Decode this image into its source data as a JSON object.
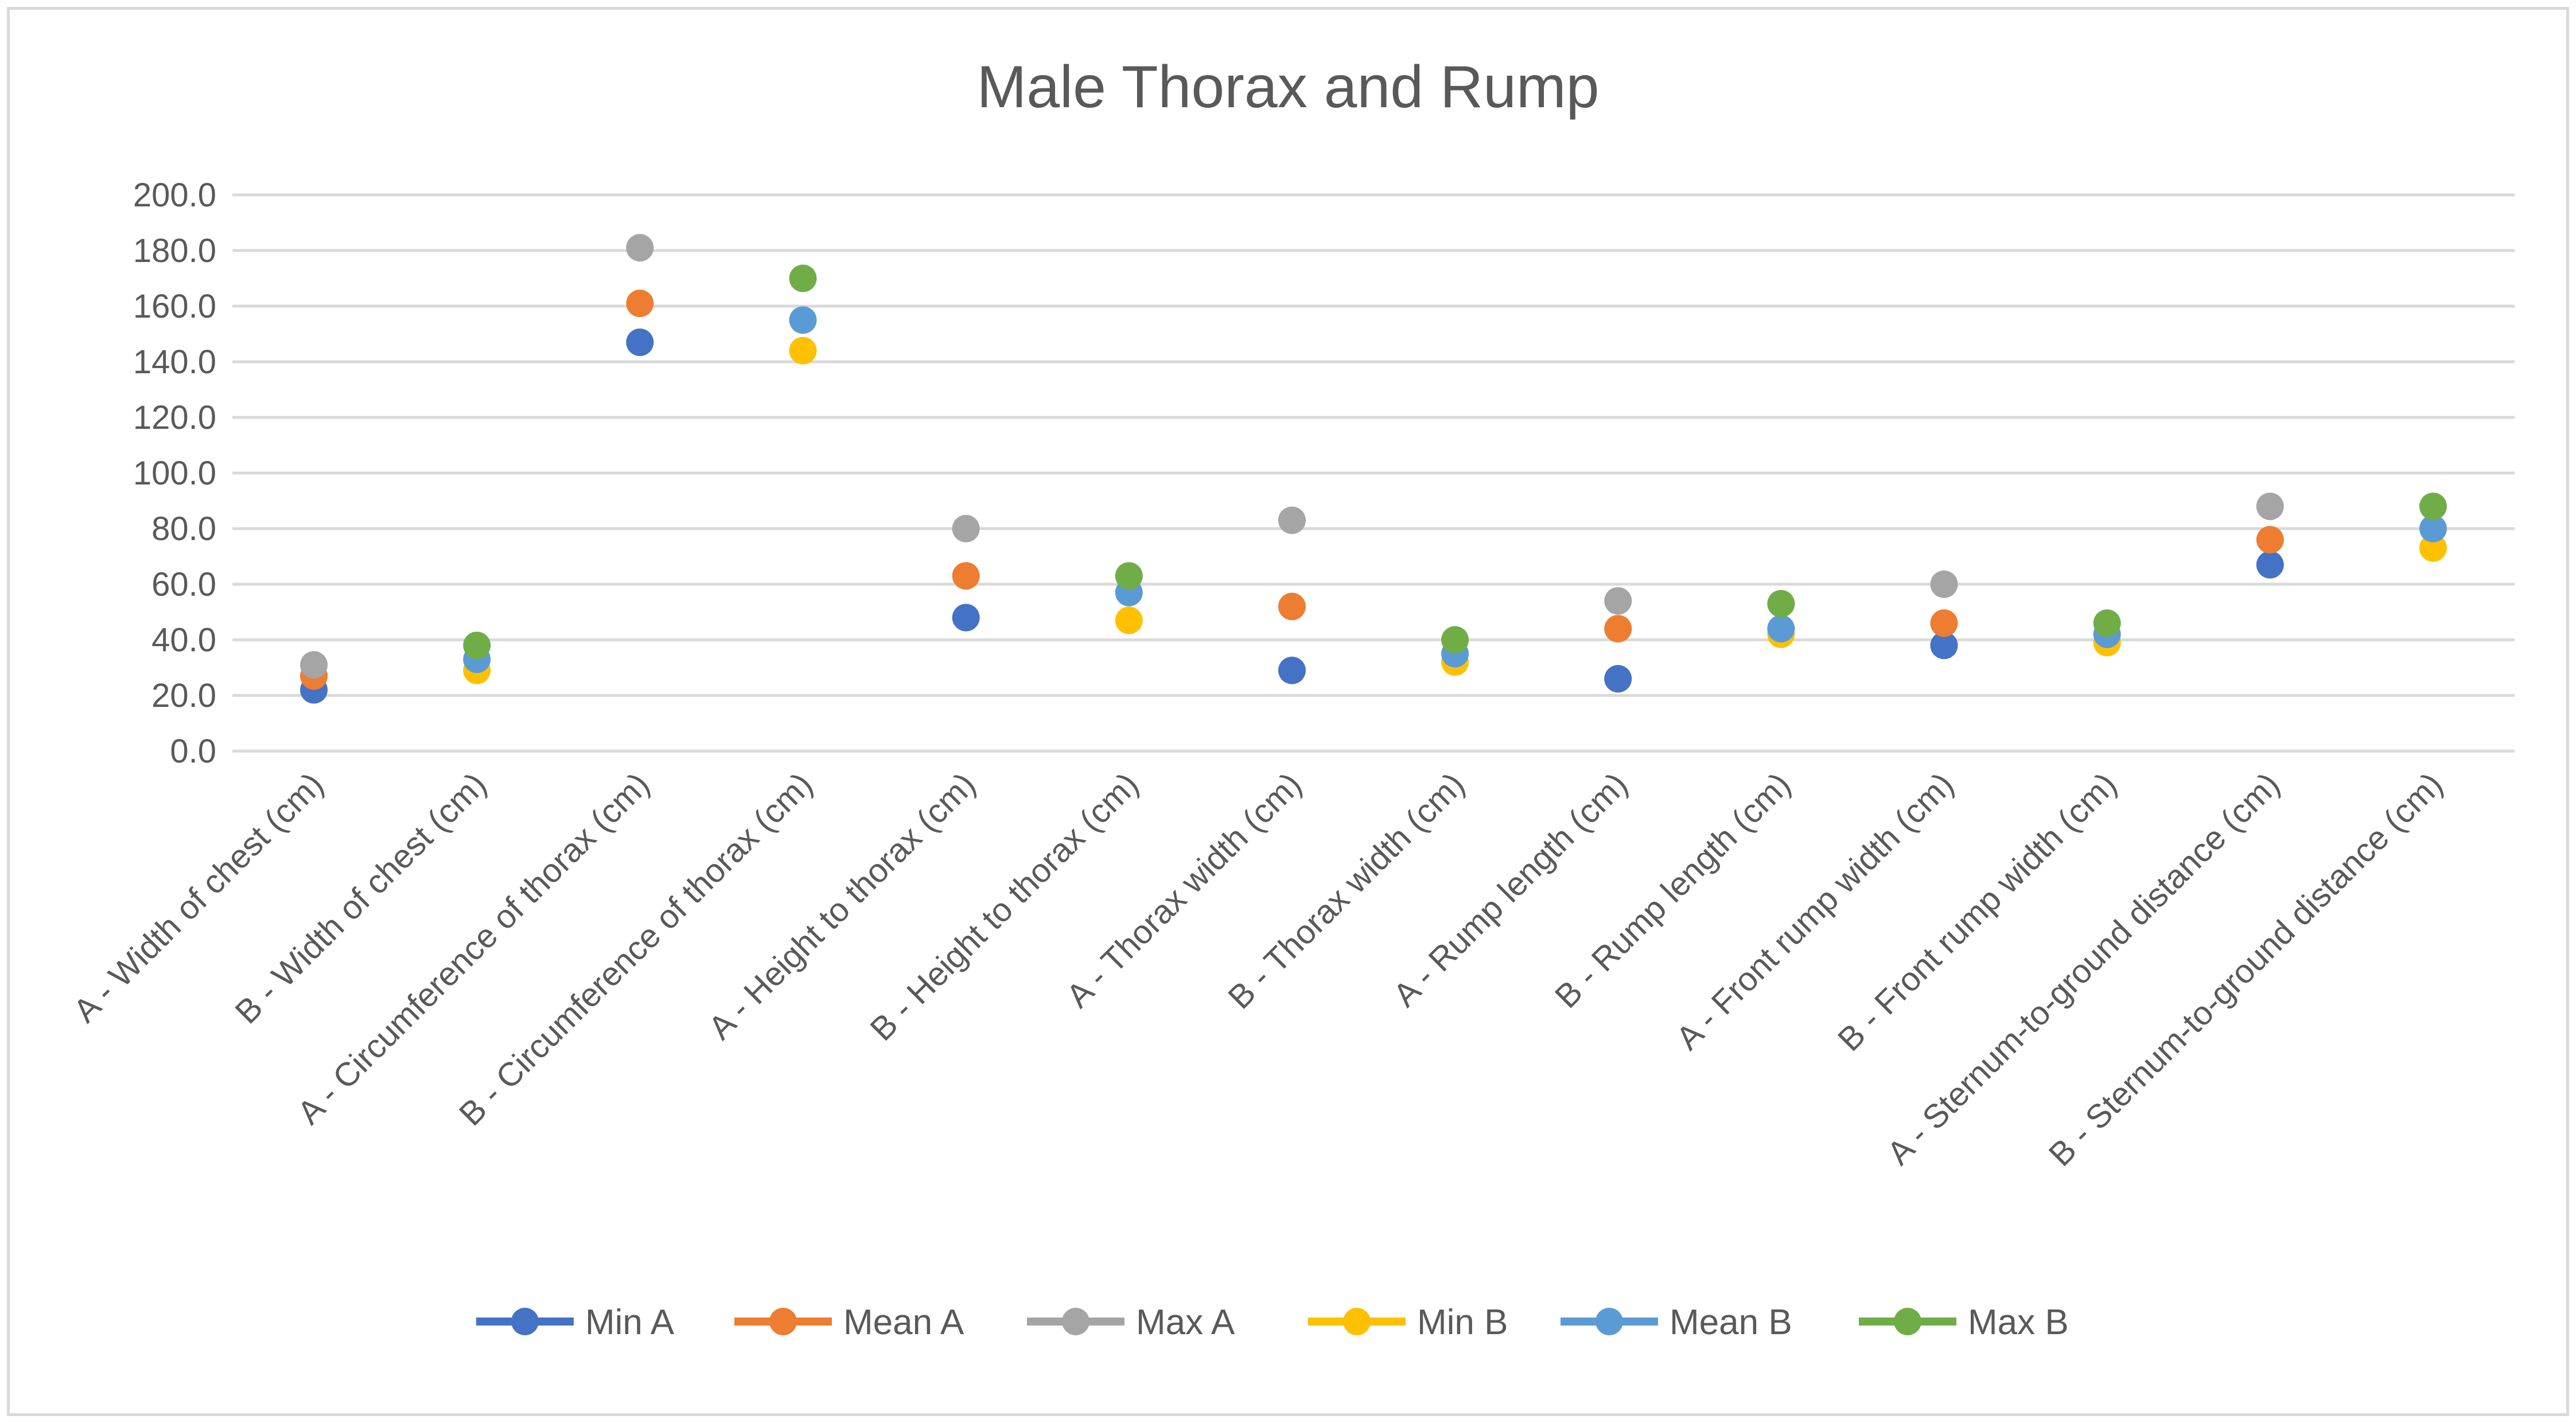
{
  "chart_data": {
    "type": "scatter",
    "title": "Male Thorax and Rump",
    "xlabel": "",
    "ylabel": "",
    "ylim": [
      0,
      200
    ],
    "yticks": [
      "0.0",
      "20.0",
      "40.0",
      "60.0",
      "80.0",
      "100.0",
      "120.0",
      "140.0",
      "160.0",
      "180.0",
      "200.0"
    ],
    "grid": true,
    "legend_position": "bottom",
    "categories": [
      "A - Width of chest (cm)",
      "B - Width of chest (cm)",
      "A - Circumference of thorax (cm)",
      "B - Circumference of thorax (cm)",
      "A - Height to thorax (cm)",
      "B - Height to thorax (cm)",
      "A - Thorax width (cm)",
      "B - Thorax width (cm)",
      "A - Rump length (cm)",
      "B - Rump length (cm)",
      "A - Front rump width (cm)",
      "B - Front rump width (cm)",
      "A - Sternum-to-ground distance (cm)",
      "B - Sternum-to-ground distance (cm)"
    ],
    "series": [
      {
        "name": "Min A",
        "color": "#4472C4",
        "values": [
          22,
          null,
          147,
          null,
          48,
          null,
          29,
          null,
          26,
          null,
          38,
          null,
          67,
          null
        ]
      },
      {
        "name": "Mean A",
        "color": "#ED7D31",
        "values": [
          27,
          null,
          161,
          null,
          63,
          null,
          52,
          null,
          44,
          null,
          46,
          null,
          76,
          null
        ]
      },
      {
        "name": "Max A",
        "color": "#A5A5A5",
        "values": [
          31,
          null,
          181,
          null,
          80,
          null,
          83,
          null,
          54,
          null,
          60,
          null,
          88,
          null
        ]
      },
      {
        "name": "Min B",
        "color": "#FFC000",
        "values": [
          null,
          29,
          null,
          144,
          null,
          47,
          null,
          32,
          null,
          42,
          null,
          39,
          null,
          73
        ]
      },
      {
        "name": "Mean B",
        "color": "#5B9BD5",
        "values": [
          null,
          33,
          null,
          155,
          null,
          57,
          null,
          35,
          null,
          44,
          null,
          42,
          null,
          80
        ]
      },
      {
        "name": "Max B",
        "color": "#70AD47",
        "values": [
          null,
          38,
          null,
          170,
          null,
          63,
          null,
          40,
          null,
          53,
          null,
          46,
          null,
          88
        ]
      }
    ]
  }
}
